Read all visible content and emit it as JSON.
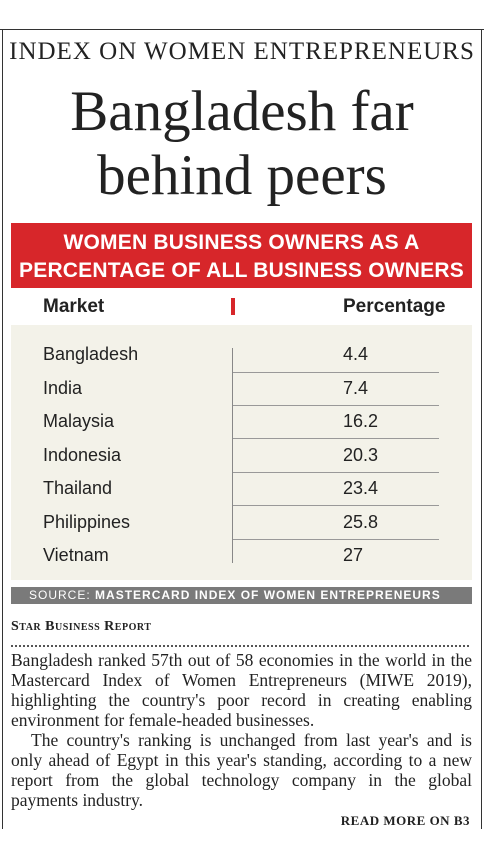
{
  "kicker": "INDEX ON WOMEN ENTREPRENEURS",
  "headline": {
    "line1": "Bangladesh far",
    "line2": "behind peers"
  },
  "table": {
    "title_line1": "WOMEN BUSINESS OWNERS AS A",
    "title_line2": "PERCENTAGE OF ALL BUSINESS OWNERS",
    "col_market": "Market",
    "col_percentage": "Percentage",
    "rows": [
      {
        "market": "Bangladesh",
        "percentage": "4.4"
      },
      {
        "market": "India",
        "percentage": "7.4"
      },
      {
        "market": "Malaysia",
        "percentage": "16.2"
      },
      {
        "market": "Indonesia",
        "percentage": "20.3"
      },
      {
        "market": "Thailand",
        "percentage": "23.4"
      },
      {
        "market": "Philippines",
        "percentage": "25.8"
      },
      {
        "market": "Vietnam",
        "percentage": "27"
      }
    ],
    "source_label": "SOURCE:",
    "source_text": "MASTERCARD INDEX OF WOMEN ENTREPRENEURS"
  },
  "byline": "Star Business Report",
  "article": {
    "p1": "Bangladesh ranked 57th out of 58 economies in the world in the Mastercard Index of Women Entrepreneurs (MIWE 2019), highlighting the country's poor record in creating enabling environment for female-headed businesses.",
    "p2": "The country's ranking is unchanged from last year's and is only ahead of Egypt in this year's standing, according to a new report from the global technology company in the global payments industry."
  },
  "read_more": "READ MORE ON B3",
  "colors": {
    "accent_red": "#d7262a",
    "table_bg": "#f3f2e9",
    "source_bar": "#7a7a7a"
  }
}
